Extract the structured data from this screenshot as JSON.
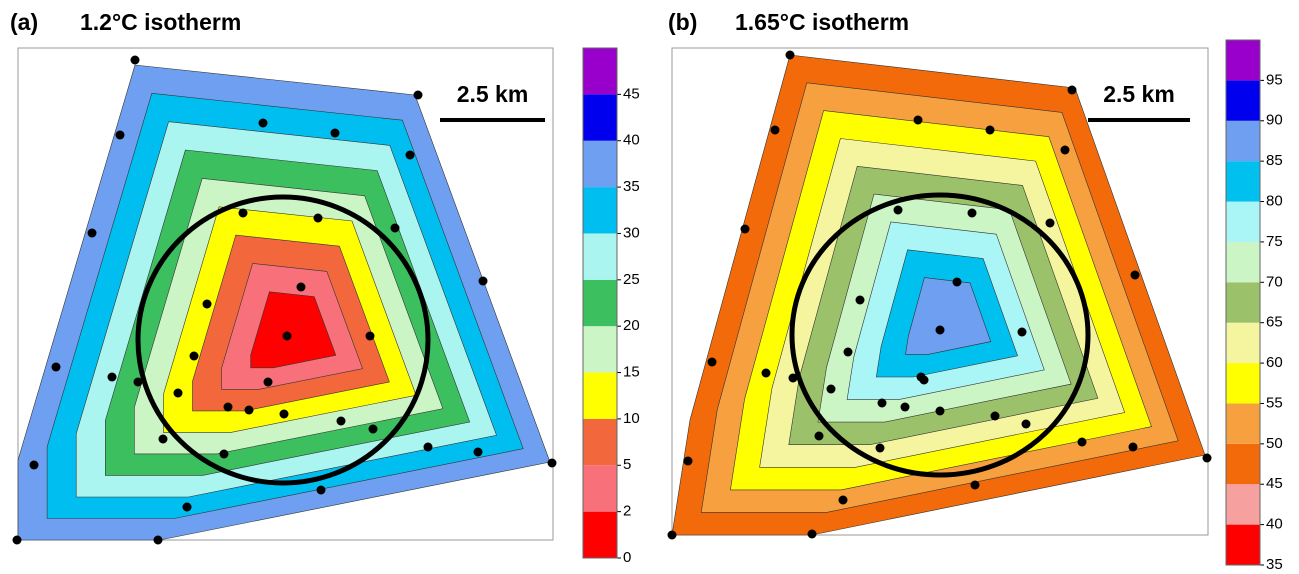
{
  "chart_data": [
    {
      "type": "contour",
      "panel": "(a)",
      "title": "1.2°C isotherm",
      "scale_label": "2.5 km",
      "colorbar": {
        "ticks": [
          0,
          2,
          5,
          10,
          15,
          20,
          25,
          30,
          35,
          40,
          45
        ],
        "colors": [
          "#ff0000",
          "#f7707a",
          "#f2683c",
          "#ffff00",
          "#ccf5c5",
          "#3cbf5f",
          "#aaf5f0",
          "#00bff0",
          "#6f9ff0",
          "#0000ee",
          "#9900cc"
        ]
      }
    },
    {
      "type": "contour",
      "panel": "(b)",
      "title": "1.65°C isotherm",
      "scale_label": "2.5 km",
      "colorbar": {
        "ticks": [
          35,
          40,
          45,
          50,
          55,
          60,
          65,
          70,
          75,
          80,
          85,
          90,
          95
        ],
        "colors": [
          "#ff0000",
          "#f7a0a0",
          "#f26a0a",
          "#f7a040",
          "#ffff00",
          "#f5f5a0",
          "#9bc26a",
          "#ccf5c5",
          "#aaf5f5",
          "#00c0f0",
          "#6f9ff0",
          "#0000ee",
          "#9900cc"
        ]
      }
    }
  ]
}
